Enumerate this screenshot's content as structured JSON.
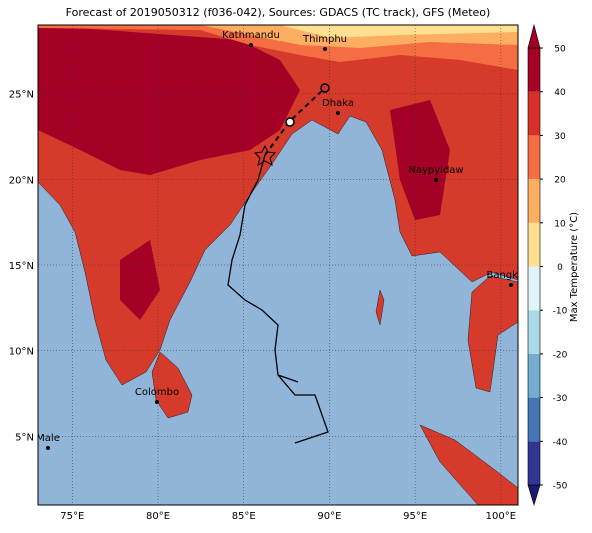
{
  "title": "Forecast of 2019050312 (f036-042), Sources: GDACS (TC track), GFS (Meteo)",
  "map": {
    "lonlim": [
      73,
      101
    ],
    "latlim": [
      1,
      29
    ],
    "lonticks": [
      {
        "value": 75,
        "label": "75°E"
      },
      {
        "value": 80,
        "label": "80°E"
      },
      {
        "value": 85,
        "label": "85°E"
      },
      {
        "value": 90,
        "label": "90°E"
      },
      {
        "value": 95,
        "label": "95°E"
      },
      {
        "value": 100,
        "label": "100°E"
      }
    ],
    "latticks": [
      {
        "value": 5,
        "label": "5°N"
      },
      {
        "value": 10,
        "label": "10°N"
      },
      {
        "value": 15,
        "label": "15°N"
      },
      {
        "value": 20,
        "label": "20°N"
      },
      {
        "value": 25,
        "label": "25°N"
      }
    ],
    "cities": [
      "Kathmandu",
      "Thimphu",
      "Dhaka",
      "Naypyidaw",
      "Bangkok",
      "Colombo",
      "Male"
    ]
  },
  "colorbar": {
    "label": "Max Temperature (°C)",
    "lim": [
      -50,
      50
    ],
    "ticks": [
      -50,
      -40,
      -30,
      -20,
      -10,
      0,
      10,
      20,
      30,
      40,
      50
    ],
    "colors": [
      "#313695",
      "#4575b4",
      "#74add1",
      "#abd9e9",
      "#e0f3f8",
      "#ffffbf",
      "#fee090",
      "#fdae61",
      "#f46d43",
      "#d73027",
      "#a50026"
    ]
  }
}
